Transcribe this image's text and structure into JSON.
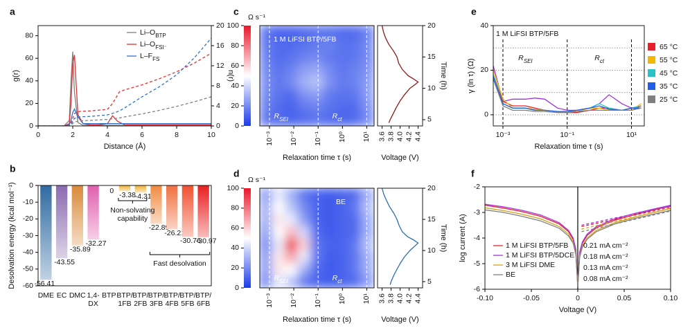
{
  "chart_data": [
    {
      "panel": "a",
      "type": "line",
      "xlabel": "Distance (Å)",
      "ylabel": "g(r)",
      "y2label": "n(r)",
      "xlim": [
        0,
        10
      ],
      "xticks": [
        0,
        2,
        4,
        6,
        8,
        10
      ],
      "ylim": [
        0,
        89
      ],
      "yticks": [
        0,
        20,
        40,
        60,
        80
      ],
      "y2lim": [
        0,
        20
      ],
      "y2ticks": [
        0,
        4,
        8,
        12,
        16,
        20
      ],
      "series": [
        {
          "name": "Li–O",
          "name_sub": "BTP",
          "color": "#7f7f7f",
          "x": [
            0,
            1.5,
            1.8,
            1.9,
            2.0,
            2.1,
            2.3,
            2.6,
            3,
            3.5,
            4,
            4.3,
            4.6,
            5,
            6,
            7,
            8,
            9,
            10
          ],
          "values": [
            0,
            0,
            5,
            40,
            66,
            30,
            3,
            0.5,
            0.5,
            0.5,
            0.5,
            0.5,
            0.5,
            0.5,
            0.5,
            0.5,
            0.5,
            0.5,
            0.5
          ]
        },
        {
          "name": "Li–O",
          "name_sub": "FSI⁻",
          "color": "#e03030",
          "x": [
            0,
            1.5,
            1.8,
            1.9,
            2.0,
            2.1,
            2.3,
            2.6,
            3,
            3.5,
            4,
            4.3,
            4.6,
            5,
            6,
            7,
            8,
            9,
            10
          ],
          "values": [
            0,
            0,
            2,
            20,
            55,
            63,
            10,
            2,
            1,
            1,
            2,
            9,
            4,
            1,
            1,
            1,
            1,
            1,
            1
          ]
        },
        {
          "name": "L–F",
          "name_sub": "FS",
          "color": "#3070c8",
          "x": [
            0,
            1.5,
            1.8,
            1.9,
            2.0,
            2.1,
            2.3,
            2.6,
            3,
            3.5,
            4,
            4.3,
            4.6,
            5,
            6,
            7,
            8,
            9,
            10
          ],
          "values": [
            0,
            0,
            1,
            5,
            12,
            15,
            8,
            2,
            2,
            2,
            2,
            2,
            2,
            2,
            2,
            2,
            2,
            2,
            2
          ]
        },
        {
          "axis": "y2",
          "dash": true,
          "color": "#e03030",
          "x": [
            0,
            1.7,
            1.9,
            2.1,
            2.4,
            3,
            4,
            4.3,
            4.7,
            5,
            6,
            7,
            8,
            9,
            10
          ],
          "values": [
            0,
            0,
            0.5,
            2.5,
            2.9,
            3,
            3.3,
            4.5,
            6.8,
            7.2,
            8.2,
            9.4,
            10.8,
            12.5,
            14.5
          ]
        },
        {
          "axis": "y2",
          "dash": true,
          "color": "#3070c8",
          "x": [
            0,
            1.7,
            1.9,
            2.1,
            2.4,
            3,
            4,
            4.3,
            4.7,
            5,
            6,
            7,
            8,
            9,
            10
          ],
          "values": [
            0,
            0,
            0.3,
            1.5,
            1.8,
            1.9,
            2.2,
            2.5,
            3,
            3.6,
            5.8,
            7.8,
            10.2,
            13.5,
            17.5
          ]
        },
        {
          "axis": "y2",
          "dash": true,
          "color": "#7f7f7f",
          "x": [
            0,
            1.7,
            1.9,
            2.1,
            2.4,
            3,
            4,
            4.3,
            4.7,
            5,
            6,
            7,
            8,
            9,
            10
          ],
          "values": [
            0,
            0,
            0.2,
            0.8,
            1,
            1.1,
            1.3,
            1.4,
            1.6,
            1.8,
            2.4,
            3.1,
            3.9,
            4.8,
            5.8
          ]
        }
      ]
    },
    {
      "panel": "b",
      "type": "bar",
      "ylabel": "Desolvation energy (kcal mol⁻¹)",
      "categories": [
        "DME",
        "EC",
        "DMC",
        "1,4-\nDX",
        "BTP",
        "BTP/\n1FB",
        "BTP/\n2FB",
        "BTP/\n3FB",
        "BTP/\n4FB",
        "BTP/\n5FB",
        "BTP/\n6FB"
      ],
      "values": [
        -56.41,
        -43.55,
        -35.89,
        -32.27,
        0,
        -3.38,
        -4.31,
        -22.89,
        -26.21,
        -30.76,
        -30.97
      ],
      "colors": [
        "#2f6aa0",
        "#8a6bb0",
        "#d98a3a",
        "#e060b0",
        "#f0b030",
        "#f0b030",
        "#f0b030",
        "#f08a40",
        "#f07040",
        "#f05030",
        "#e82020"
      ],
      "ylim": [
        -60,
        0
      ],
      "yticks": [
        0,
        -10,
        -20,
        -30,
        -40,
        -50,
        -60
      ],
      "annotations": [
        "Non-solvating\ncapability",
        "Fast desolvation"
      ]
    },
    {
      "panel": "c",
      "type": "heatmap",
      "title": "1 M LiFSI BTP/5FB",
      "colorbar_label": "Ω s⁻¹",
      "xlabel": "Relaxation time τ (s)",
      "xlim": [
        0.0004,
        20
      ],
      "xticks": [
        {
          "value": 0.001,
          "label": "10⁻³"
        },
        {
          "value": 0.01,
          "label": "10⁻²"
        },
        {
          "value": 0.1,
          "label": "10⁻¹"
        },
        {
          "value": 1,
          "label": "10⁰"
        },
        {
          "value": 10,
          "label": "10¹"
        }
      ],
      "ylim": [
        4,
        20
      ],
      "zlim": [
        0,
        100
      ],
      "zticks": [
        0,
        20,
        40,
        60,
        80,
        100
      ],
      "dividers": [
        0.001,
        0.1,
        10
      ],
      "annotations": [
        {
          "text": "R",
          "sub": "SEI",
          "x": 0.003
        },
        {
          "text": "R",
          "sub": "ct",
          "x": 0.6
        }
      ],
      "z": [
        [
          15,
          12,
          10,
          12,
          14,
          12,
          10,
          12,
          20
        ],
        [
          18,
          12,
          10,
          15,
          18,
          14,
          12,
          12,
          22
        ],
        [
          20,
          14,
          12,
          22,
          25,
          16,
          14,
          15,
          25
        ],
        [
          22,
          15,
          20,
          30,
          35,
          22,
          16,
          18,
          25
        ],
        [
          20,
          14,
          18,
          25,
          28,
          20,
          15,
          18,
          22
        ],
        [
          18,
          12,
          14,
          18,
          20,
          16,
          14,
          15,
          20
        ],
        [
          16,
          12,
          12,
          14,
          16,
          18,
          14,
          14,
          20
        ],
        [
          15,
          10,
          10,
          12,
          14,
          14,
          12,
          12,
          18
        ]
      ],
      "voltage": {
        "xlabel": "Voltage (V)",
        "ylabel": "Time (h)",
        "color": "#8b1a1a",
        "xlim": [
          3.5,
          4.5
        ],
        "xticks": [
          3.6,
          3.8,
          {
            "value": 4.0,
            "label": "4.0"
          },
          4.2,
          4.4
        ],
        "ylim": [
          4,
          20
        ],
        "yticks": [
          5,
          10,
          15,
          20
        ],
        "x": [
          3.75,
          3.78,
          3.85,
          3.92,
          4.0,
          4.1,
          4.22,
          4.35,
          4.4,
          4.3,
          4.18,
          4.05,
          3.97,
          3.93,
          3.85,
          3.75,
          3.68,
          3.63,
          3.6
        ],
        "y": [
          4.5,
          5,
          6,
          7,
          8,
          9,
          10,
          10.7,
          11,
          11.5,
          12,
          13,
          14,
          15,
          16,
          17,
          18,
          19,
          20
        ]
      }
    },
    {
      "panel": "d",
      "type": "heatmap",
      "title": "BE",
      "colorbar_label": "Ω s⁻¹",
      "xlabel": "Relaxation time τ (s)",
      "xlim": [
        0.0004,
        20
      ],
      "xticks": [
        {
          "value": 0.001,
          "label": "10⁻³"
        },
        {
          "value": 0.01,
          "label": "10⁻²"
        },
        {
          "value": 0.1,
          "label": "10⁻¹"
        },
        {
          "value": 1,
          "label": "10⁰"
        },
        {
          "value": 10,
          "label": "10¹"
        }
      ],
      "ylim": [
        4,
        20
      ],
      "zlim": [
        0,
        100
      ],
      "zticks": [
        0,
        20,
        40,
        60,
        80,
        100
      ],
      "dividers": [
        0.001,
        0.1,
        10
      ],
      "annotations": [
        {
          "text": "R",
          "sub": "SEI",
          "x": 0.003
        },
        {
          "text": "R",
          "sub": "ct",
          "x": 0.6
        }
      ],
      "z": [
        [
          20,
          45,
          35,
          15,
          10,
          8,
          10,
          12,
          25
        ],
        [
          25,
          55,
          50,
          30,
          12,
          8,
          10,
          15,
          30
        ],
        [
          25,
          55,
          70,
          45,
          15,
          8,
          10,
          15,
          30
        ],
        [
          20,
          45,
          90,
          60,
          15,
          10,
          10,
          15,
          35
        ],
        [
          25,
          50,
          65,
          40,
          12,
          8,
          10,
          12,
          30
        ],
        [
          30,
          55,
          45,
          25,
          10,
          8,
          10,
          12,
          30
        ],
        [
          30,
          50,
          35,
          20,
          10,
          8,
          10,
          15,
          35
        ],
        [
          25,
          45,
          30,
          15,
          10,
          8,
          10,
          12,
          30
        ]
      ],
      "voltage": {
        "xlabel": "Voltage (V)",
        "ylabel": "Time (h)",
        "color": "#2a6fa8",
        "xlim": [
          3.5,
          4.5
        ],
        "xticks": [
          3.6,
          3.8,
          {
            "value": 4.0,
            "label": "4.0"
          },
          4.2,
          4.4
        ],
        "ylim": [
          4,
          20
        ],
        "yticks": [
          5,
          10,
          15,
          20
        ],
        "x": [
          3.78,
          3.8,
          3.86,
          3.93,
          4.01,
          4.1,
          4.22,
          4.34,
          4.4,
          4.3,
          4.17,
          4.05,
          3.98,
          3.93,
          3.86,
          3.77,
          3.7,
          3.64,
          3.6
        ],
        "y": [
          4.5,
          5,
          6,
          7,
          8,
          9,
          10,
          10.8,
          11.2,
          11.7,
          12.2,
          13,
          14,
          15,
          16,
          17,
          18,
          19,
          20
        ]
      }
    },
    {
      "panel": "e",
      "type": "line",
      "title": "1 M LiFSI BTP/5FB",
      "xlabel": "Relaxation time τ (s)",
      "ylabel": "γ (ln τ) (Ω)",
      "xlog": true,
      "xlim": [
        0.0005,
        25
      ],
      "xticks": [
        {
          "value": 0.001,
          "label": "10⁻³"
        },
        {
          "value": 0.1,
          "label": "10⁻¹"
        },
        {
          "value": 10,
          "label": "10¹"
        }
      ],
      "ylim": [
        -5,
        40
      ],
      "yticks": [
        0,
        20,
        40
      ],
      "hlines": [
        0,
        10,
        20,
        30
      ],
      "dividers": [
        0.001,
        0.1,
        10
      ],
      "annotations": [
        {
          "text": "R",
          "sub": "SEI",
          "x": 0.005
        },
        {
          "text": "R",
          "sub": "ct",
          "x": 1
        }
      ],
      "x": [
        0.0005,
        0.001,
        0.002,
        0.005,
        0.01,
        0.02,
        0.05,
        0.1,
        0.2,
        0.5,
        1,
        2,
        5,
        10,
        20
      ],
      "series": [
        {
          "color": "#a030e0",
          "values": [
            22,
            6,
            7,
            7,
            7.5,
            7,
            3,
            2,
            2,
            3,
            5,
            9,
            5,
            3,
            4
          ]
        },
        {
          "name": "65 °C",
          "color": "#e8202a",
          "values": [
            18,
            6,
            4,
            4,
            3,
            2,
            1.5,
            1,
            1,
            2,
            3,
            3,
            2,
            2,
            4
          ]
        },
        {
          "name": "55 °C",
          "color": "#f5b800",
          "values": [
            20,
            7,
            3,
            3,
            2.5,
            2,
            1.5,
            1.5,
            1.5,
            3,
            3,
            2,
            2,
            2,
            5
          ]
        },
        {
          "name": "45 °C",
          "color": "#27c1c7",
          "values": [
            18,
            5,
            3,
            3,
            2,
            2,
            1.5,
            1.5,
            2,
            3,
            5,
            3,
            2,
            3,
            4
          ]
        },
        {
          "name": "35 °C",
          "color": "#1f5ee8",
          "values": [
            17,
            5,
            3,
            3,
            2,
            2,
            1.5,
            1.5,
            2,
            3,
            4,
            2.5,
            2,
            3,
            3
          ]
        },
        {
          "name": "25 °C",
          "color": "#7f7f7f",
          "values": [
            16,
            4,
            2,
            2,
            1.5,
            1.5,
            1,
            1,
            1.5,
            2,
            2,
            2,
            2,
            2,
            3
          ]
        }
      ]
    },
    {
      "panel": "f",
      "type": "line",
      "xlabel": "Voltage (V)",
      "ylabel": "log current (A)",
      "xlim": [
        -0.1,
        0.1
      ],
      "xticks": [
        {
          "value": -0.1,
          "label": "-0.10"
        },
        {
          "value": -0.05,
          "label": "-0.05"
        },
        0,
        {
          "value": 0.05,
          "label": "0.05"
        },
        {
          "value": 0.1,
          "label": "0.10"
        }
      ],
      "ylim": [
        -6,
        -2
      ],
      "yticks": [
        -6,
        -5,
        -4,
        -3,
        -2
      ],
      "vline": 0,
      "x": [
        -0.1,
        -0.08,
        -0.06,
        -0.04,
        -0.02,
        -0.01,
        -0.005,
        -0.002,
        0,
        0.002,
        0.005,
        0.01,
        0.02,
        0.04,
        0.06,
        0.08,
        0.1
      ],
      "series": [
        {
          "name": "1 M LiFSI BTP/5FB",
          "color": "#e8202a",
          "values": [
            -2.72,
            -2.83,
            -2.97,
            -3.15,
            -3.45,
            -3.75,
            -4.05,
            -4.5,
            -5.9,
            -4.6,
            -4.2,
            -3.9,
            -3.6,
            -3.3,
            -3.1,
            -2.92,
            -2.75
          ]
        },
        {
          "name": "1 M LiFSI BTP/5DCE",
          "color": "#a030e0",
          "values": [
            -2.68,
            -2.78,
            -2.92,
            -3.1,
            -3.4,
            -3.7,
            -4.0,
            -4.45,
            -5.9,
            -4.55,
            -4.15,
            -3.85,
            -3.55,
            -3.25,
            -3.05,
            -2.88,
            -2.72
          ]
        },
        {
          "name": "3 M LiFSI DME",
          "color": "#d4a017",
          "values": [
            -2.82,
            -2.93,
            -3.07,
            -3.25,
            -3.55,
            -3.85,
            -4.15,
            -4.6,
            -5.9,
            -4.7,
            -4.3,
            -4.0,
            -3.7,
            -3.4,
            -3.2,
            -3.02,
            -2.85
          ]
        },
        {
          "name": "BE",
          "color": "#808080",
          "values": [
            -2.9,
            -3.0,
            -3.15,
            -3.33,
            -3.62,
            -3.92,
            -4.2,
            -4.65,
            -5.9,
            -4.75,
            -4.35,
            -4.05,
            -3.75,
            -3.45,
            -3.25,
            -3.08,
            -2.92
          ]
        },
        {
          "dash": true,
          "color": "#e8202a",
          "x": [
            0.004,
            0.1
          ],
          "values": [
            -3.55,
            -2.8
          ]
        },
        {
          "dash": true,
          "color": "#a030e0",
          "x": [
            0.004,
            0.1
          ],
          "values": [
            -3.5,
            -2.75
          ]
        },
        {
          "dash": true,
          "color": "#d4a017",
          "x": [
            0.004,
            0.1
          ],
          "values": [
            -3.65,
            -2.85
          ]
        },
        {
          "dash": true,
          "color": "#808080",
          "x": [
            0.004,
            0.1
          ],
          "values": [
            -3.75,
            -2.95
          ]
        }
      ],
      "annotations": [
        {
          "text": "0.21 mA cm⁻²",
          "color": "#e8202a"
        },
        {
          "text": "0.18 mA cm⁻²",
          "color": "#a030e0"
        },
        {
          "text": "0.13 mA cm⁻²",
          "color": "#d4a017"
        },
        {
          "text": "0.08 mA cm⁻²",
          "color": "#8080c0"
        }
      ]
    }
  ]
}
